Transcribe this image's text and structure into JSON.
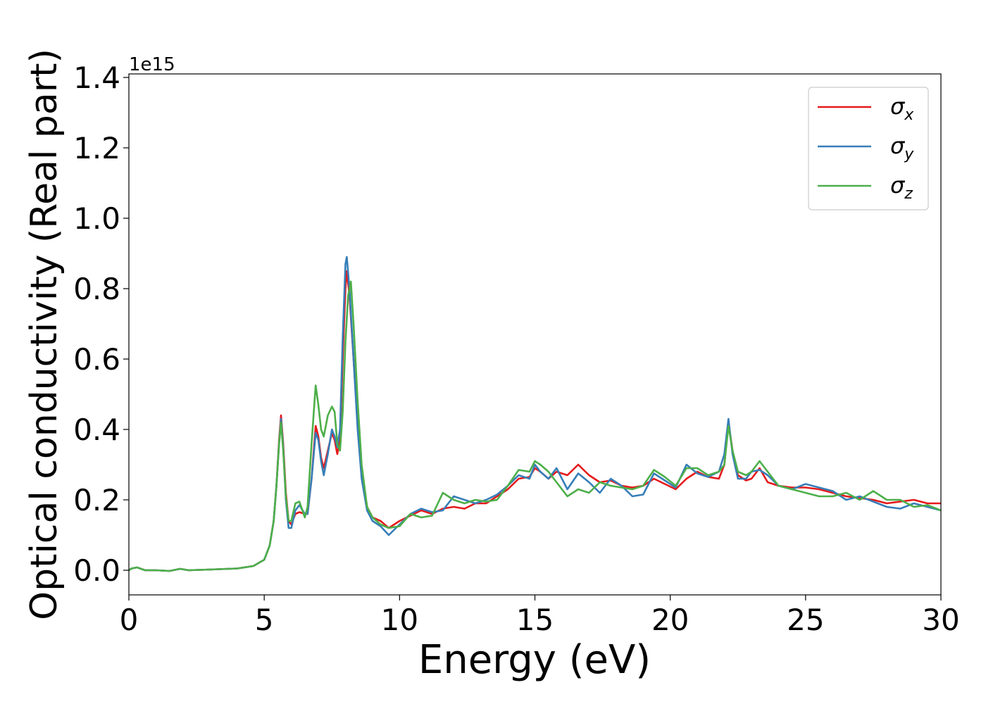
{
  "chart_data": {
    "type": "line",
    "title": "",
    "xlabel": "Energy (eV)",
    "ylabel": "Optical conductivity (Real part)",
    "offset_text": "1e15",
    "xlim": [
      0,
      30
    ],
    "ylim": [
      -0.07,
      1.41
    ],
    "x_ticks": [
      0,
      5,
      10,
      15,
      20,
      25,
      30
    ],
    "x_tick_labels": [
      "0",
      "5",
      "10",
      "15",
      "20",
      "25",
      "30"
    ],
    "y_ticks": [
      0.0,
      0.2,
      0.4,
      0.6,
      0.8,
      1.0,
      1.2,
      1.4
    ],
    "y_tick_labels": [
      "0.0",
      "0.2",
      "0.4",
      "0.6",
      "0.8",
      "1.0",
      "1.2",
      "1.4"
    ],
    "grid": false,
    "legend_position": "top-right",
    "series": [
      {
        "name": "σx",
        "legend_base": "σ",
        "legend_sub": "x",
        "color": "#e41a1c",
        "points": [
          [
            0,
            0
          ],
          [
            0.1,
            0.005
          ],
          [
            0.3,
            0.008
          ],
          [
            0.6,
            0.0
          ],
          [
            1.0,
            0.0
          ],
          [
            1.5,
            -0.002
          ],
          [
            1.9,
            0.004
          ],
          [
            2.2,
            0.0
          ],
          [
            3.0,
            0.002
          ],
          [
            4.0,
            0.005
          ],
          [
            4.6,
            0.012
          ],
          [
            5.0,
            0.03
          ],
          [
            5.2,
            0.07
          ],
          [
            5.35,
            0.14
          ],
          [
            5.45,
            0.24
          ],
          [
            5.55,
            0.37
          ],
          [
            5.62,
            0.44
          ],
          [
            5.7,
            0.36
          ],
          [
            5.8,
            0.22
          ],
          [
            5.9,
            0.14
          ],
          [
            6.0,
            0.13
          ],
          [
            6.15,
            0.16
          ],
          [
            6.3,
            0.165
          ],
          [
            6.5,
            0.16
          ],
          [
            6.6,
            0.16
          ],
          [
            6.75,
            0.26
          ],
          [
            6.9,
            0.41
          ],
          [
            7.0,
            0.38
          ],
          [
            7.1,
            0.32
          ],
          [
            7.2,
            0.29
          ],
          [
            7.35,
            0.34
          ],
          [
            7.5,
            0.39
          ],
          [
            7.6,
            0.37
          ],
          [
            7.7,
            0.33
          ],
          [
            7.8,
            0.37
          ],
          [
            7.9,
            0.6
          ],
          [
            8.0,
            0.8
          ],
          [
            8.05,
            0.85
          ],
          [
            8.15,
            0.78
          ],
          [
            8.3,
            0.6
          ],
          [
            8.45,
            0.42
          ],
          [
            8.6,
            0.28
          ],
          [
            8.8,
            0.18
          ],
          [
            9.0,
            0.15
          ],
          [
            9.3,
            0.14
          ],
          [
            9.6,
            0.12
          ],
          [
            10.0,
            0.14
          ],
          [
            10.4,
            0.155
          ],
          [
            10.8,
            0.17
          ],
          [
            11.2,
            0.16
          ],
          [
            11.6,
            0.175
          ],
          [
            12.0,
            0.18
          ],
          [
            12.4,
            0.175
          ],
          [
            12.8,
            0.19
          ],
          [
            13.2,
            0.19
          ],
          [
            13.6,
            0.21
          ],
          [
            14.0,
            0.23
          ],
          [
            14.4,
            0.26
          ],
          [
            14.8,
            0.265
          ],
          [
            15.0,
            0.29
          ],
          [
            15.2,
            0.28
          ],
          [
            15.5,
            0.26
          ],
          [
            15.8,
            0.28
          ],
          [
            16.2,
            0.27
          ],
          [
            16.6,
            0.3
          ],
          [
            17.0,
            0.27
          ],
          [
            17.4,
            0.25
          ],
          [
            17.8,
            0.255
          ],
          [
            18.2,
            0.24
          ],
          [
            18.6,
            0.235
          ],
          [
            19.0,
            0.24
          ],
          [
            19.4,
            0.26
          ],
          [
            19.8,
            0.245
          ],
          [
            20.2,
            0.23
          ],
          [
            20.6,
            0.26
          ],
          [
            21.0,
            0.28
          ],
          [
            21.4,
            0.265
          ],
          [
            21.8,
            0.26
          ],
          [
            22.0,
            0.3
          ],
          [
            22.15,
            0.42
          ],
          [
            22.3,
            0.34
          ],
          [
            22.5,
            0.27
          ],
          [
            22.8,
            0.255
          ],
          [
            23.0,
            0.26
          ],
          [
            23.3,
            0.29
          ],
          [
            23.6,
            0.25
          ],
          [
            24.0,
            0.24
          ],
          [
            24.5,
            0.235
          ],
          [
            25.0,
            0.235
          ],
          [
            25.5,
            0.23
          ],
          [
            26.0,
            0.22
          ],
          [
            26.5,
            0.21
          ],
          [
            27.0,
            0.205
          ],
          [
            27.5,
            0.2
          ],
          [
            28.0,
            0.19
          ],
          [
            28.5,
            0.195
          ],
          [
            29.0,
            0.2
          ],
          [
            29.5,
            0.19
          ],
          [
            30.0,
            0.19
          ]
        ]
      },
      {
        "name": "σy",
        "legend_base": "σ",
        "legend_sub": "y",
        "color": "#377eb8",
        "points": [
          [
            0,
            0
          ],
          [
            0.1,
            0.005
          ],
          [
            0.3,
            0.008
          ],
          [
            0.6,
            0.0
          ],
          [
            1.0,
            0.0
          ],
          [
            1.5,
            -0.002
          ],
          [
            1.9,
            0.004
          ],
          [
            2.2,
            0.0
          ],
          [
            3.0,
            0.002
          ],
          [
            4.0,
            0.005
          ],
          [
            4.6,
            0.012
          ],
          [
            5.0,
            0.03
          ],
          [
            5.2,
            0.07
          ],
          [
            5.35,
            0.14
          ],
          [
            5.45,
            0.24
          ],
          [
            5.55,
            0.36
          ],
          [
            5.62,
            0.43
          ],
          [
            5.7,
            0.35
          ],
          [
            5.8,
            0.2
          ],
          [
            5.9,
            0.12
          ],
          [
            6.0,
            0.12
          ],
          [
            6.15,
            0.17
          ],
          [
            6.3,
            0.185
          ],
          [
            6.5,
            0.16
          ],
          [
            6.6,
            0.16
          ],
          [
            6.75,
            0.26
          ],
          [
            6.9,
            0.39
          ],
          [
            7.0,
            0.37
          ],
          [
            7.1,
            0.31
          ],
          [
            7.2,
            0.27
          ],
          [
            7.35,
            0.33
          ],
          [
            7.5,
            0.4
          ],
          [
            7.6,
            0.38
          ],
          [
            7.7,
            0.35
          ],
          [
            7.8,
            0.4
          ],
          [
            7.9,
            0.66
          ],
          [
            8.0,
            0.87
          ],
          [
            8.05,
            0.89
          ],
          [
            8.15,
            0.8
          ],
          [
            8.3,
            0.6
          ],
          [
            8.45,
            0.4
          ],
          [
            8.6,
            0.26
          ],
          [
            8.8,
            0.17
          ],
          [
            9.0,
            0.14
          ],
          [
            9.3,
            0.125
          ],
          [
            9.6,
            0.1
          ],
          [
            10.0,
            0.13
          ],
          [
            10.4,
            0.16
          ],
          [
            10.8,
            0.175
          ],
          [
            11.2,
            0.165
          ],
          [
            11.6,
            0.17
          ],
          [
            12.0,
            0.21
          ],
          [
            12.4,
            0.2
          ],
          [
            12.8,
            0.19
          ],
          [
            13.2,
            0.2
          ],
          [
            13.6,
            0.215
          ],
          [
            14.0,
            0.24
          ],
          [
            14.4,
            0.27
          ],
          [
            14.8,
            0.26
          ],
          [
            15.0,
            0.3
          ],
          [
            15.2,
            0.28
          ],
          [
            15.5,
            0.26
          ],
          [
            15.8,
            0.29
          ],
          [
            16.2,
            0.23
          ],
          [
            16.6,
            0.275
          ],
          [
            17.0,
            0.25
          ],
          [
            17.4,
            0.22
          ],
          [
            17.8,
            0.26
          ],
          [
            18.2,
            0.24
          ],
          [
            18.6,
            0.21
          ],
          [
            19.0,
            0.215
          ],
          [
            19.4,
            0.275
          ],
          [
            19.8,
            0.255
          ],
          [
            20.2,
            0.235
          ],
          [
            20.6,
            0.3
          ],
          [
            21.0,
            0.275
          ],
          [
            21.4,
            0.265
          ],
          [
            21.8,
            0.28
          ],
          [
            22.0,
            0.33
          ],
          [
            22.15,
            0.43
          ],
          [
            22.3,
            0.33
          ],
          [
            22.5,
            0.26
          ],
          [
            22.8,
            0.26
          ],
          [
            23.0,
            0.28
          ],
          [
            23.3,
            0.285
          ],
          [
            23.6,
            0.27
          ],
          [
            24.0,
            0.24
          ],
          [
            24.5,
            0.23
          ],
          [
            25.0,
            0.245
          ],
          [
            25.5,
            0.235
          ],
          [
            26.0,
            0.225
          ],
          [
            26.5,
            0.2
          ],
          [
            27.0,
            0.21
          ],
          [
            27.5,
            0.195
          ],
          [
            28.0,
            0.18
          ],
          [
            28.5,
            0.175
          ],
          [
            29.0,
            0.19
          ],
          [
            29.5,
            0.18
          ],
          [
            30.0,
            0.17
          ]
        ]
      },
      {
        "name": "σz",
        "legend_base": "σ",
        "legend_sub": "z",
        "color": "#4daf4a",
        "points": [
          [
            0,
            0
          ],
          [
            0.1,
            0.005
          ],
          [
            0.3,
            0.008
          ],
          [
            0.6,
            0.0
          ],
          [
            1.0,
            0.0
          ],
          [
            1.5,
            -0.002
          ],
          [
            1.9,
            0.004
          ],
          [
            2.2,
            0.0
          ],
          [
            3.0,
            0.002
          ],
          [
            4.0,
            0.005
          ],
          [
            4.6,
            0.012
          ],
          [
            5.0,
            0.03
          ],
          [
            5.2,
            0.07
          ],
          [
            5.35,
            0.14
          ],
          [
            5.45,
            0.24
          ],
          [
            5.55,
            0.36
          ],
          [
            5.62,
            0.42
          ],
          [
            5.7,
            0.34
          ],
          [
            5.8,
            0.21
          ],
          [
            5.9,
            0.14
          ],
          [
            6.0,
            0.14
          ],
          [
            6.15,
            0.19
          ],
          [
            6.3,
            0.195
          ],
          [
            6.5,
            0.15
          ],
          [
            6.6,
            0.18
          ],
          [
            6.75,
            0.36
          ],
          [
            6.9,
            0.525
          ],
          [
            7.0,
            0.47
          ],
          [
            7.1,
            0.4
          ],
          [
            7.2,
            0.38
          ],
          [
            7.35,
            0.44
          ],
          [
            7.5,
            0.465
          ],
          [
            7.6,
            0.45
          ],
          [
            7.7,
            0.36
          ],
          [
            7.8,
            0.34
          ],
          [
            7.9,
            0.45
          ],
          [
            8.0,
            0.65
          ],
          [
            8.1,
            0.78
          ],
          [
            8.2,
            0.82
          ],
          [
            8.3,
            0.7
          ],
          [
            8.45,
            0.48
          ],
          [
            8.6,
            0.3
          ],
          [
            8.8,
            0.18
          ],
          [
            9.0,
            0.15
          ],
          [
            9.3,
            0.13
          ],
          [
            9.6,
            0.12
          ],
          [
            10.0,
            0.125
          ],
          [
            10.4,
            0.16
          ],
          [
            10.8,
            0.15
          ],
          [
            11.2,
            0.155
          ],
          [
            11.6,
            0.22
          ],
          [
            12.0,
            0.2
          ],
          [
            12.4,
            0.19
          ],
          [
            12.8,
            0.2
          ],
          [
            13.2,
            0.195
          ],
          [
            13.6,
            0.2
          ],
          [
            14.0,
            0.24
          ],
          [
            14.4,
            0.285
          ],
          [
            14.8,
            0.28
          ],
          [
            15.0,
            0.31
          ],
          [
            15.2,
            0.3
          ],
          [
            15.5,
            0.28
          ],
          [
            15.8,
            0.25
          ],
          [
            16.2,
            0.21
          ],
          [
            16.6,
            0.23
          ],
          [
            17.0,
            0.22
          ],
          [
            17.4,
            0.25
          ],
          [
            17.8,
            0.24
          ],
          [
            18.2,
            0.235
          ],
          [
            18.6,
            0.23
          ],
          [
            19.0,
            0.24
          ],
          [
            19.4,
            0.285
          ],
          [
            19.8,
            0.265
          ],
          [
            20.2,
            0.24
          ],
          [
            20.6,
            0.29
          ],
          [
            21.0,
            0.29
          ],
          [
            21.4,
            0.27
          ],
          [
            21.8,
            0.28
          ],
          [
            22.0,
            0.3
          ],
          [
            22.15,
            0.41
          ],
          [
            22.3,
            0.34
          ],
          [
            22.5,
            0.28
          ],
          [
            22.8,
            0.27
          ],
          [
            23.0,
            0.28
          ],
          [
            23.3,
            0.31
          ],
          [
            23.6,
            0.28
          ],
          [
            24.0,
            0.24
          ],
          [
            24.5,
            0.23
          ],
          [
            25.0,
            0.22
          ],
          [
            25.5,
            0.21
          ],
          [
            26.0,
            0.21
          ],
          [
            26.5,
            0.22
          ],
          [
            27.0,
            0.2
          ],
          [
            27.5,
            0.225
          ],
          [
            28.0,
            0.2
          ],
          [
            28.5,
            0.2
          ],
          [
            29.0,
            0.18
          ],
          [
            29.5,
            0.185
          ],
          [
            30.0,
            0.17
          ]
        ]
      }
    ]
  }
}
